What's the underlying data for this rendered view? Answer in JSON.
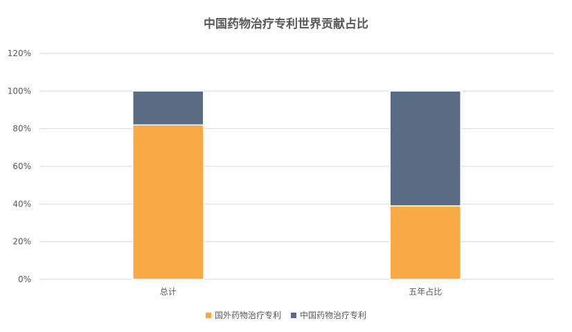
{
  "colors": {
    "foreign": "#F9A945",
    "china": "#596C84",
    "grid": "#d9d9d9",
    "text": "#595959"
  },
  "chart_data": {
    "type": "bar",
    "stacked": true,
    "title": "中国药物治疗专利世界贡献占比",
    "categories": [
      "总计",
      "五年占比"
    ],
    "series": [
      {
        "name": "国外药物治疗专利",
        "values": [
          82,
          39
        ]
      },
      {
        "name": "中国药物治疗专利",
        "values": [
          18,
          61
        ]
      }
    ],
    "ylim": [
      0,
      120
    ],
    "yticks": [
      "0%",
      "20%",
      "40%",
      "60%",
      "80%",
      "100%",
      "120%"
    ],
    "grid": true,
    "legend_position": "bottom"
  }
}
